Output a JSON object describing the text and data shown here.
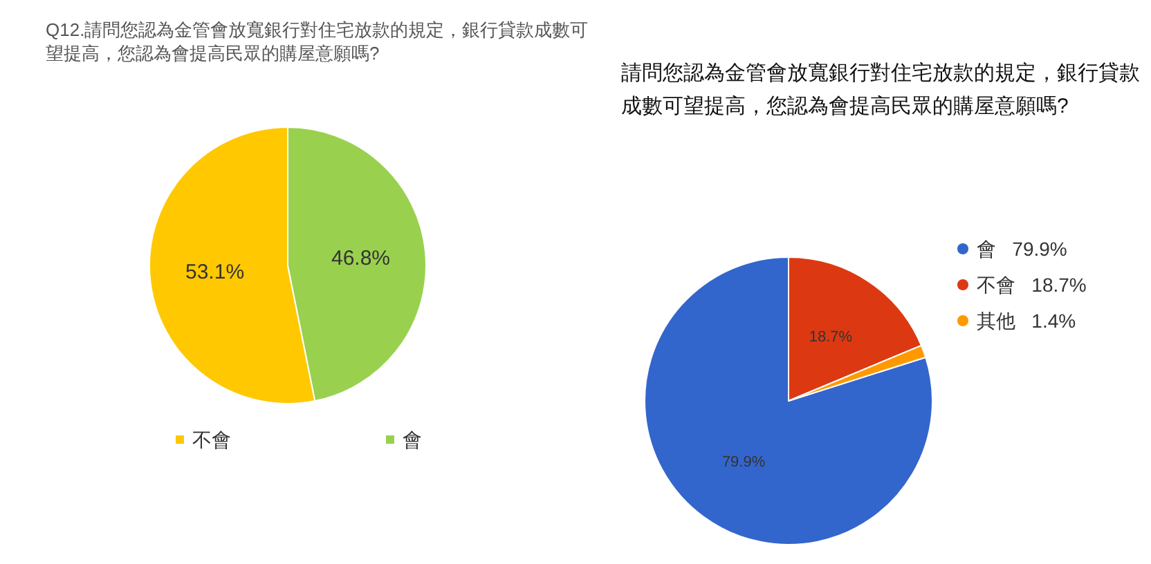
{
  "chart_data": [
    {
      "type": "pie",
      "title": "Q12.請問您認為金管會放寬銀行對住宅放款的規定，銀行貸款成數可望提高，您認為會提高民眾的購屋意願嗎?",
      "categories": [
        "不會",
        "會"
      ],
      "values": [
        53.1,
        46.8
      ],
      "colors": [
        "#ffc800",
        "#99d14f"
      ],
      "value_labels": [
        "53.1%",
        "46.8%"
      ],
      "legend": "bottom"
    },
    {
      "type": "pie",
      "title": "請問您認為金管會放寬銀行對住宅放款的規定，銀行貸款成數可望提高，您認為會提高民眾的購屋意願嗎?",
      "categories": [
        "會",
        "不會",
        "其他"
      ],
      "values": [
        79.9,
        18.7,
        1.4
      ],
      "colors": [
        "#3366cc",
        "#dc3912",
        "#ff9900"
      ],
      "value_labels": [
        "79.9%",
        "18.7%",
        "1.4%"
      ],
      "legend": "right"
    }
  ]
}
